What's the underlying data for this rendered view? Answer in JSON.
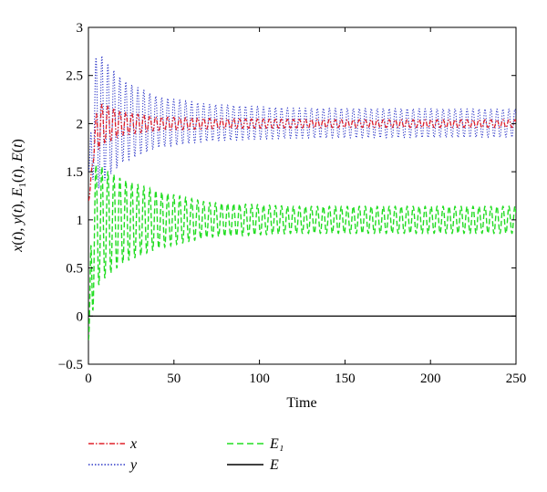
{
  "chart_data": {
    "type": "line",
    "title": "",
    "xlabel": "Time",
    "ylabel": "x(t), y(t), E₁(t), E(t)",
    "xlim": [
      0,
      250
    ],
    "ylim": [
      -0.5,
      3
    ],
    "x_ticks": [
      0,
      50,
      100,
      150,
      200,
      250
    ],
    "x_tick_labels": [
      "0",
      "50",
      "100",
      "150",
      "200",
      "250"
    ],
    "y_ticks": [
      -0.5,
      0,
      0.5,
      1,
      1.5,
      2,
      2.5,
      3
    ],
    "y_tick_labels": [
      "−0.5",
      "0",
      "0.5",
      "1",
      "1.5",
      "2",
      "2.5",
      "3"
    ],
    "grid": false,
    "legend_placement": "below plot",
    "series": [
      {
        "name": "x",
        "color": "#e0202a",
        "style": "dash-dot",
        "oscillation_period": 3.5,
        "initial_value": 1.2,
        "equilibrium": 2.0,
        "envelope_points": [
          [
            0,
            1.2
          ],
          [
            2,
            1.55
          ],
          [
            5,
            2.2
          ],
          [
            10,
            2.2
          ],
          [
            20,
            2.12
          ],
          [
            40,
            2.07
          ],
          [
            80,
            2.05
          ],
          [
            150,
            2.04
          ],
          [
            250,
            2.04
          ]
        ],
        "envelope_lower": [
          [
            0,
            1.2
          ],
          [
            2,
            1.55
          ],
          [
            5,
            1.72
          ],
          [
            10,
            1.8
          ],
          [
            20,
            1.88
          ],
          [
            40,
            1.93
          ],
          [
            80,
            1.95
          ],
          [
            150,
            1.96
          ],
          [
            250,
            1.96
          ]
        ]
      },
      {
        "name": "y",
        "color": "#2e38c8",
        "style": "dotted",
        "oscillation_period": 3.5,
        "initial_value": 1.5,
        "equilibrium": 2.0,
        "envelope_points": [
          [
            0,
            1.5
          ],
          [
            2,
            2.3
          ],
          [
            5,
            2.78
          ],
          [
            10,
            2.65
          ],
          [
            20,
            2.45
          ],
          [
            40,
            2.28
          ],
          [
            70,
            2.2
          ],
          [
            120,
            2.16
          ],
          [
            250,
            2.15
          ]
        ],
        "envelope_lower": [
          [
            0,
            1.5
          ],
          [
            2,
            1.45
          ],
          [
            5,
            1.3
          ],
          [
            10,
            1.42
          ],
          [
            20,
            1.6
          ],
          [
            40,
            1.75
          ],
          [
            70,
            1.82
          ],
          [
            120,
            1.85
          ],
          [
            250,
            1.86
          ]
        ]
      },
      {
        "name": "E₁",
        "color": "#22dd22",
        "style": "dashed",
        "oscillation_period": 3.5,
        "initial_value": -0.25,
        "equilibrium": 1.0,
        "envelope_points": [
          [
            0,
            -0.05
          ],
          [
            2,
            1.45
          ],
          [
            5,
            1.6
          ],
          [
            10,
            1.52
          ],
          [
            20,
            1.42
          ],
          [
            40,
            1.3
          ],
          [
            70,
            1.18
          ],
          [
            120,
            1.14
          ],
          [
            250,
            1.14
          ]
        ],
        "envelope_lower": [
          [
            0,
            -0.25
          ],
          [
            2,
            0.0
          ],
          [
            5,
            0.3
          ],
          [
            10,
            0.4
          ],
          [
            20,
            0.55
          ],
          [
            40,
            0.7
          ],
          [
            70,
            0.82
          ],
          [
            120,
            0.86
          ],
          [
            250,
            0.86
          ]
        ]
      },
      {
        "name": "E",
        "color": "#000000",
        "style": "solid",
        "constant_value": 0
      }
    ]
  }
}
